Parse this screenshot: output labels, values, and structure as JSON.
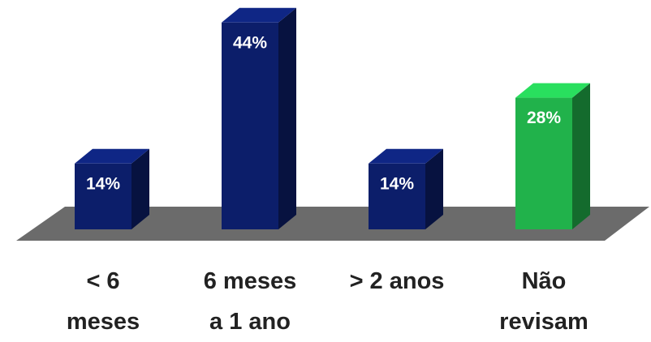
{
  "chart_data": {
    "type": "bar3d",
    "categories": [
      "< 6\nmeses",
      "6 meses\na 1 ano",
      "> 2 anos",
      "Não\nrevisam"
    ],
    "values": [
      14,
      44,
      14,
      28
    ],
    "value_labels": [
      "14%",
      "44%",
      "14%",
      "28%"
    ],
    "colors": [
      "#0c1e6a",
      "#0c1e6a",
      "#0c1e6a",
      "#21b24b"
    ]
  }
}
